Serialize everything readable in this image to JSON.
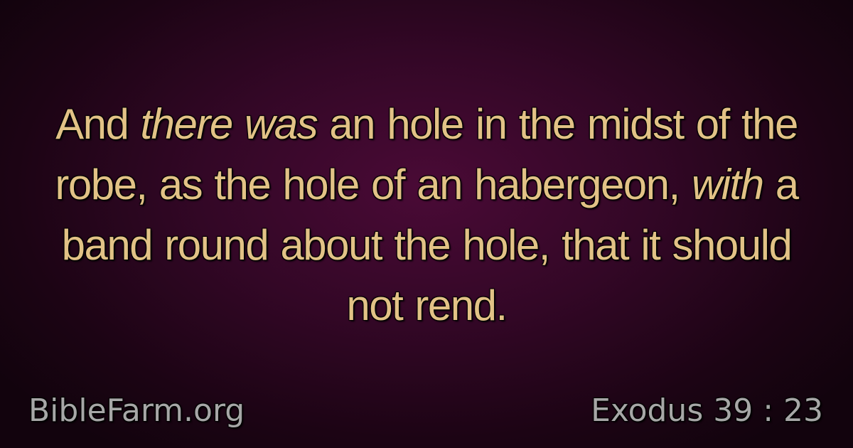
{
  "verse": {
    "segments": [
      {
        "text": "And ",
        "italic": false
      },
      {
        "text": "there was",
        "italic": true
      },
      {
        "text": "  an hole in the midst of the robe, as the hole of an habergeon, ",
        "italic": false
      },
      {
        "text": "with",
        "italic": true
      },
      {
        "text": "  a band round about the hole, that it should not rend.",
        "italic": false
      }
    ]
  },
  "footer": {
    "site": "BibleFarm.org",
    "reference": "Exodus 39 : 23"
  },
  "colors": {
    "verse_text": "#e2c286",
    "footer_text": "#a7a7a7",
    "background_center": "#4a0a36",
    "background_edge": "#12030d"
  }
}
